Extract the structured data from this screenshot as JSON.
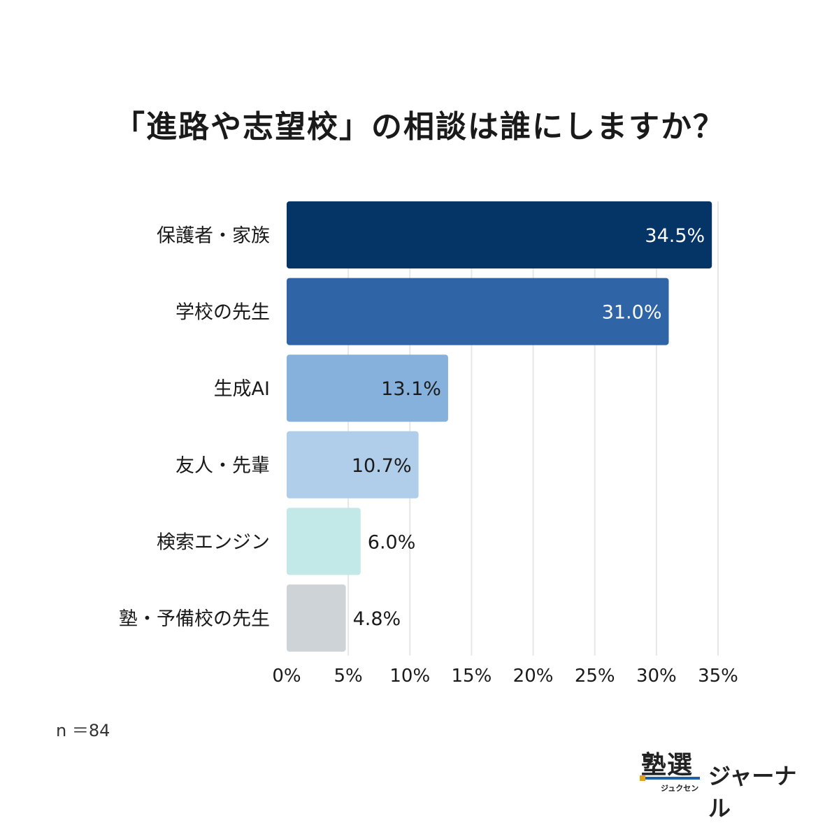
{
  "chart_data": {
    "type": "bar",
    "orientation": "horizontal",
    "title": "「進路や志望校」の相談は誰にしますか？",
    "categories": [
      "保護者・家族",
      "学校の先生",
      "生成AI",
      "友人・先輩",
      "検索エンジン",
      "塾・予備校の先生"
    ],
    "values": [
      34.5,
      31.0,
      13.1,
      10.7,
      6.0,
      4.8
    ],
    "value_labels": [
      "34.5%",
      "31.0%",
      "13.1%",
      "10.7%",
      "6.0%",
      "4.8%"
    ],
    "bar_colors": [
      "#053467",
      "#2f65a6",
      "#86b1dc",
      "#b0cdea",
      "#c2e8e7",
      "#cdd3d6"
    ],
    "label_colors": [
      "#ffffff",
      "#ffffff",
      "#1a1a1a",
      "#1a1a1a",
      "#1a1a1a",
      "#1a1a1a"
    ],
    "xlim": [
      0,
      35
    ],
    "xticks": [
      0,
      5,
      10,
      15,
      20,
      25,
      30,
      35
    ],
    "xtick_labels": [
      "0%",
      "5%",
      "10%",
      "15%",
      "20%",
      "25%",
      "30%",
      "35%"
    ],
    "grid": true,
    "gridline_color": "#e6e6e6"
  },
  "note": "n ＝84",
  "logo": {
    "kanji": "塾選",
    "kana": "ジュクセン",
    "journal": "ジャーナル"
  }
}
